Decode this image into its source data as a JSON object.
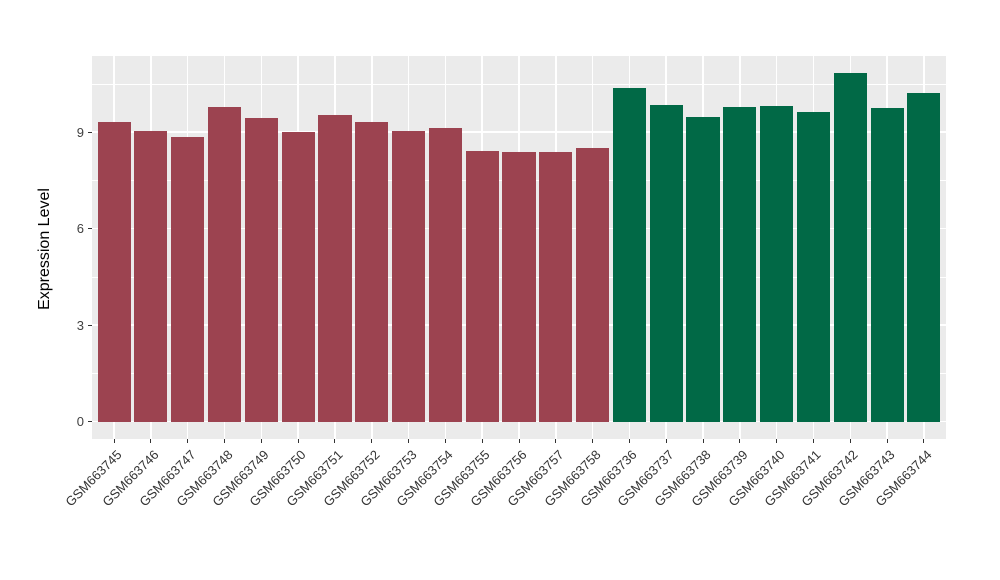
{
  "chart_data": {
    "type": "bar",
    "title": "",
    "xlabel": "",
    "ylabel": "Expression Level",
    "yticks": [
      0,
      3,
      6,
      9
    ],
    "yminorticks": [
      1.5,
      4.5,
      7.5,
      10.5
    ],
    "ylim": [
      -0.54,
      11.37
    ],
    "grid": "horizontal major+minor white gridlines, vertical white gridline at each category center",
    "legend_position": "none",
    "panel_bg": "#EBEBEB",
    "grid_color": "#FFFFFF",
    "tick_text_color": "#404040",
    "axis_title_color": "#000000",
    "categories": [
      "GSM663745",
      "GSM663746",
      "GSM663747",
      "GSM663748",
      "GSM663749",
      "GSM663750",
      "GSM663751",
      "GSM663752",
      "GSM663753",
      "GSM663754",
      "GSM663755",
      "GSM663756",
      "GSM663757",
      "GSM663758",
      "GSM663736",
      "GSM663737",
      "GSM663738",
      "GSM663739",
      "GSM663740",
      "GSM663741",
      "GSM663742",
      "GSM663743",
      "GSM663744"
    ],
    "values": [
      9.33,
      9.04,
      8.84,
      9.79,
      9.44,
      9.02,
      9.53,
      9.32,
      9.04,
      9.14,
      8.42,
      8.38,
      8.38,
      8.5,
      10.37,
      9.85,
      9.48,
      9.78,
      9.81,
      9.62,
      10.83,
      9.74,
      10.22
    ],
    "groups": [
      0,
      0,
      0,
      0,
      0,
      0,
      0,
      0,
      0,
      0,
      0,
      0,
      0,
      0,
      1,
      1,
      1,
      1,
      1,
      1,
      1,
      1,
      1
    ],
    "group_colors": [
      "#9C4350",
      "#016946"
    ]
  }
}
